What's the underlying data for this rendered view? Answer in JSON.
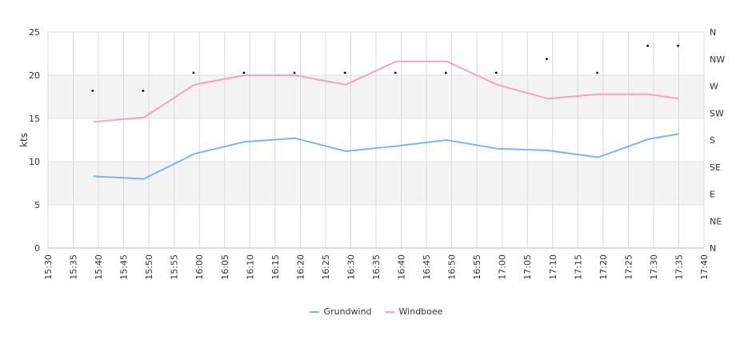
{
  "chart_data": {
    "type": "line",
    "x_ticks": [
      "15:30",
      "15:35",
      "15:40",
      "15:45",
      "15:50",
      "15:55",
      "16:00",
      "16:05",
      "16:10",
      "16:15",
      "16:20",
      "16:25",
      "16:30",
      "16:35",
      "16:40",
      "16:45",
      "16:50",
      "16:55",
      "17:00",
      "17:05",
      "17:10",
      "17:15",
      "17:20",
      "17:25",
      "17:30",
      "17:35",
      "17:40"
    ],
    "y_ticks": [
      0,
      5,
      10,
      15,
      20,
      25
    ],
    "ylim": [
      0,
      25
    ],
    "ylabel": "kts",
    "direction_ticks": [
      "N",
      "NE",
      "E",
      "SE",
      "S",
      "SW",
      "W",
      "NW",
      "N"
    ],
    "x": [
      "15:39",
      "15:49",
      "15:59",
      "16:09",
      "16:19",
      "16:29",
      "16:39",
      "16:49",
      "16:59",
      "17:09",
      "17:19",
      "17:29",
      "17:35"
    ],
    "series": [
      {
        "name": "Grundwind",
        "color": "#7cb5ec",
        "values": [
          8.3,
          8.0,
          10.9,
          12.3,
          12.7,
          11.2,
          11.8,
          12.5,
          11.5,
          11.3,
          10.5,
          12.6,
          13.2
        ]
      },
      {
        "name": "Windboee",
        "color": "#f7a1c4",
        "values": [
          14.6,
          15.1,
          18.9,
          20.0,
          20.0,
          18.9,
          21.6,
          21.6,
          18.9,
          17.3,
          17.8,
          17.8,
          17.3
        ]
      }
    ],
    "direction": {
      "values": [
        "W",
        "W",
        "NW",
        "NW",
        "NW",
        "NW",
        "NW",
        "NW",
        "NW",
        "NW",
        "NW",
        "N",
        "N"
      ],
      "degrees": [
        262,
        262,
        292,
        292,
        292,
        292,
        292,
        292,
        292,
        315,
        292,
        337,
        337
      ]
    },
    "bands": [
      [
        5,
        10
      ],
      [
        15,
        20
      ]
    ],
    "grid": true,
    "legend": "bottom-center"
  }
}
